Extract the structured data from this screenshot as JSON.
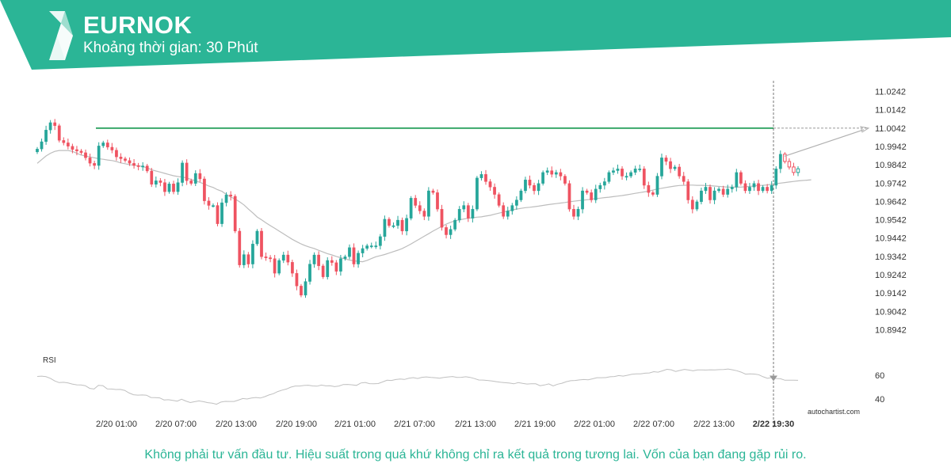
{
  "header": {
    "symbol": "EURNOK",
    "timeframe_label": "Khoảng thời gian: 30 Phút"
  },
  "colors": {
    "brand": "#2bb596",
    "bullish": "#26a69a",
    "bearish": "#ef5361",
    "resistance": "#3aa86a"
  },
  "icons": [
    "autochartist-logo-icon"
  ],
  "chart_data": {
    "type": "candlestick",
    "symbol": "EURNOK",
    "x_ticks": [
      "2/20 01:00",
      "2/20 07:00",
      "2/20 13:00",
      "2/20 19:00",
      "2/21 01:00",
      "2/21 07:00",
      "2/21 13:00",
      "2/21 19:00",
      "2/22 01:00",
      "2/22 07:00",
      "2/22 13:00",
      "2/22 19:30"
    ],
    "y_ticks": [
      "11.0242",
      "11.0142",
      "11.0042",
      "10.9942",
      "10.9842",
      "10.9742",
      "10.9642",
      "10.9542",
      "10.9442",
      "10.9342",
      "10.9242",
      "10.9142",
      "10.9042",
      "10.8942"
    ],
    "ylim": [
      10.8892,
      11.0292
    ],
    "resistance_level": 11.0042,
    "current_time_label": "2/22 19:30",
    "projection": {
      "from": 10.9889,
      "to": 11.0042
    },
    "close_series": [
      10.9928,
      10.9968,
      11.0032,
      11.0072,
      11.0055,
      10.9975,
      10.9962,
      10.9943,
      10.9925,
      10.9917,
      10.9908,
      10.988,
      10.985,
      10.9838,
      10.9945,
      10.9962,
      10.9938,
      10.9922,
      10.9885,
      10.9875,
      10.9865,
      10.985,
      10.9838,
      10.9832,
      10.9836,
      10.9808,
      10.9735,
      10.9755,
      10.9745,
      10.9695,
      10.9738,
      10.9695,
      10.9745,
      10.9852,
      10.9755,
      10.974,
      10.9795,
      10.9765,
      10.9645,
      10.962,
      10.962,
      10.952,
      10.9635,
      10.9678,
      10.967,
      10.948,
      10.9295,
      10.9352,
      10.93,
      10.941,
      10.948,
      10.934,
      10.9335,
      10.933,
      10.925,
      10.932,
      10.935,
      10.931,
      10.925,
      10.918,
      10.913,
      10.9205,
      10.93,
      10.935,
      10.929,
      10.923,
      10.932,
      10.9308,
      10.926,
      10.933,
      10.934,
      10.939,
      10.93,
      10.936,
      10.9385,
      10.94,
      10.94,
      10.94,
      10.945,
      10.9545,
      10.951,
      10.951,
      10.954,
      10.948,
      10.955,
      10.966,
      10.962,
      10.959,
      10.956,
      10.97,
      10.969,
      10.96,
      10.95,
      10.946,
      10.949,
      10.954,
      10.96,
      10.962,
      10.955,
      10.96,
      10.977,
      10.979,
      10.975,
      10.972,
      10.968,
      10.962,
      10.956,
      10.959,
      10.962,
      10.965,
      10.97,
      10.976,
      10.973,
      10.97,
      10.974,
      10.98,
      10.981,
      10.979,
      10.98,
      10.978,
      10.974,
      10.96,
      10.956,
      10.96,
      10.97,
      10.969,
      10.965,
      10.971,
      10.973,
      10.975,
      10.98,
      10.981,
      10.982,
      10.978,
      10.978,
      10.98,
      10.982,
      10.982,
      10.973,
      10.969,
      10.968,
      10.978,
      10.988,
      10.986,
      10.982,
      10.983,
      10.978,
      10.975,
      10.965,
      10.96,
      10.964,
      10.97,
      10.972,
      10.965,
      10.97,
      10.971,
      10.968,
      10.971,
      10.972,
      10.98,
      10.974,
      10.97,
      10.972,
      10.974,
      10.97,
      10.972,
      10.97,
      10.973,
      10.982,
      10.99,
      10.986,
      10.983,
      10.98,
      10.982
    ],
    "ma_series": [
      10.985,
      10.987,
      10.989,
      10.9905,
      10.9915,
      10.992,
      10.992,
      10.992,
      10.9915,
      10.9905,
      10.9895,
      10.989,
      10.9885,
      10.988,
      10.9875,
      10.9872,
      10.9868,
      10.9865,
      10.986,
      10.9852,
      10.9848,
      10.9842,
      10.984,
      10.9837,
      10.9832,
      10.9825,
      10.9815,
      10.9808,
      10.9802,
      10.9795,
      10.9788,
      10.9782,
      10.9778,
      10.9775,
      10.977,
      10.9762,
      10.9755,
      10.9746,
      10.9737,
      10.9726,
      10.9718,
      10.9706,
      10.9697,
      10.968,
      10.9666,
      10.9655,
      10.964,
      10.9623,
      10.96,
      10.958,
      10.9557,
      10.9542,
      10.9525,
      10.951,
      10.9495,
      10.948,
      10.9465,
      10.945,
      10.9435,
      10.9422,
      10.941,
      10.94,
      10.9392,
      10.9385,
      10.9375,
      10.9366,
      10.9357,
      10.935,
      10.9342,
      10.9335,
      10.9328,
      10.9322,
      10.9318,
      10.9315,
      10.9313,
      10.932,
      10.933,
      10.934,
      10.9346,
      10.9352,
      10.936,
      10.9368,
      10.9376,
      10.9385,
      10.9397,
      10.941,
      10.9424,
      10.9438,
      10.9452,
      10.9466,
      10.948,
      10.9493,
      10.9506,
      10.9518,
      10.9528,
      10.9536,
      10.9542,
      10.9546,
      10.955,
      10.9553,
      10.9556,
      10.9558,
      10.9562,
      10.9566,
      10.9572,
      10.9578,
      10.9584,
      10.959,
      10.9596,
      10.96,
      10.9604,
      10.9608,
      10.961,
      10.9613,
      10.9616,
      10.962,
      10.9624,
      10.9627,
      10.963,
      10.9633,
      10.9636,
      10.964,
      10.9643,
      10.9646,
      10.9648,
      10.9651,
      10.9654,
      10.9658,
      10.966,
      10.9663,
      10.9665,
      10.9668,
      10.9671,
      10.9674,
      10.9678,
      10.9682,
      10.9686,
      10.969,
      10.9694,
      10.9698,
      10.9704,
      10.971,
      10.9714,
      10.9718,
      10.9722,
      10.9726,
      10.9729,
      10.973,
      10.9731,
      10.9731,
      10.973,
      10.973,
      10.9729,
      10.9728,
      10.9726,
      10.9724,
      10.9722,
      10.972,
      10.972,
      10.972,
      10.972,
      10.9722,
      10.9724,
      10.9727,
      10.9729,
      10.973,
      10.9732,
      10.9736,
      10.9739,
      10.9742,
      10.9745,
      10.9748,
      10.9751,
      10.9754,
      10.9756,
      10.9758,
      10.976
    ],
    "rsi_label": "RSI",
    "rsi_ticks": [
      60,
      40
    ],
    "rsi_ylim": [
      35,
      75
    ],
    "rsi_series": [
      59,
      59.3,
      58.8,
      57.4,
      55.2,
      53.8,
      54.1,
      53.6,
      52.6,
      51.9,
      51.8,
      51.2,
      48.9,
      48.4,
      51.5,
      51.3,
      48.5,
      48.4,
      48.0,
      48.1,
      47.3,
      45.1,
      43.6,
      43.3,
      43.4,
      43.2,
      41.3,
      41.2,
      40.9,
      39.2,
      39.4,
      38.8,
      38.2,
      39.8,
      38.3,
      37.0,
      37.7,
      38.4,
      37.7,
      36.9,
      36.5,
      35.6,
      37.4,
      38.0,
      37.9,
      37.9,
      39.1,
      40.4,
      40.0,
      40.8,
      41.3,
      40.8,
      41.9,
      43.4,
      44.5,
      46.3,
      47.5,
      48.4,
      50.0,
      50.9,
      50.9,
      51.4,
      51.6,
      51.0,
      50.8,
      51.7,
      51.1,
      51.2,
      50.4,
      50.9,
      52.2,
      52.3,
      51.9,
      51.5,
      53.5,
      53.9,
      52.9,
      52.8,
      53.0,
      54.4,
      55.8,
      55.6,
      56.4,
      56.8,
      56.5,
      57.5,
      58.0,
      57.3,
      58.3,
      58.6,
      58.2,
      57.9,
      57.5,
      58.2,
      58.6,
      58.9,
      58.2,
      58.3,
      58.7,
      58.2,
      57.2,
      56.0,
      55.9,
      55.6,
      55.2,
      54.6,
      54.1,
      53.7,
      53.4,
      52.8,
      53.8,
      53.2,
      52.6,
      52.8,
      52.8,
      51.2,
      51.8,
      52.7,
      51.0,
      52.5,
      53.3,
      54.6,
      55.4,
      55.6,
      56.1,
      56.4,
      56.2,
      57.0,
      57.9,
      57.9,
      58.0,
      58.7,
      58.9,
      59.7,
      59.3,
      60.0,
      60.8,
      61.2,
      61.2,
      61.7,
      61.9,
      63.0,
      62.6,
      63.7,
      65.0,
      64.6,
      63.2,
      64.1,
      64.9,
      64.4,
      63.7,
      64.5,
      64.5,
      64.4,
      64.6,
      64.5,
      64.7,
      64.8,
      65.3,
      64.6,
      63.8,
      62.6,
      60.9,
      61.2,
      61.0,
      60.5,
      58.7,
      57.4,
      58.1,
      57.3,
      57.1,
      55.8,
      55.8,
      55.8,
      55.7
    ],
    "rsi_marker": {
      "value": 57.0,
      "type": "down-arrow"
    }
  },
  "watermark": "autochartist.com",
  "disclaimer": "Không phải tư vấn đầu tư. Hiệu suất trong quá khứ không chỉ ra kết quả trong tương lai. Vốn của bạn đang gặp rủi ro."
}
